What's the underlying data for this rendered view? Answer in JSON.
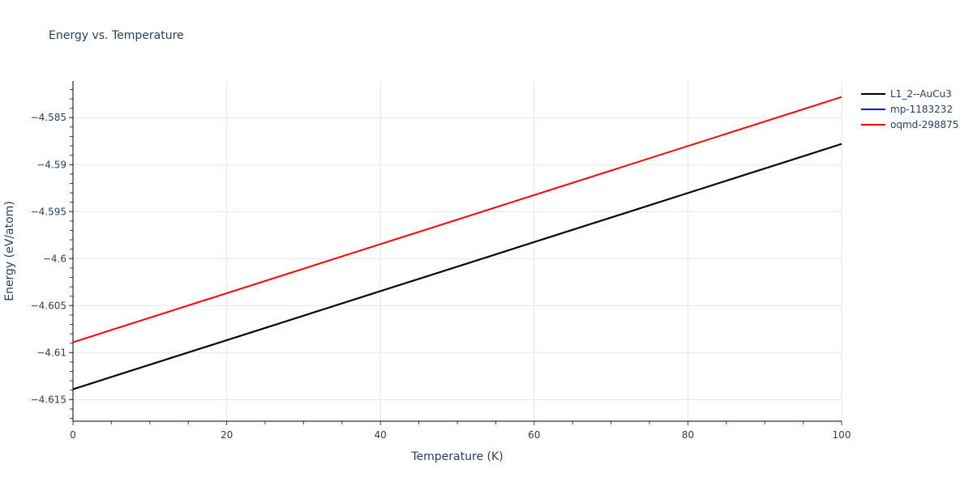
{
  "chart_data": {
    "type": "line",
    "title": "Energy vs. Temperature",
    "xlabel": "Temperature (K)",
    "ylabel": "Energy (eV/atom)",
    "xlim": [
      0,
      100
    ],
    "ylim": [
      -4.6173,
      -4.5811
    ],
    "xticks": [
      0,
      20,
      40,
      60,
      80,
      100
    ],
    "xtick_labels": [
      "0",
      "20",
      "40",
      "60",
      "80",
      "100"
    ],
    "yticks": [
      -4.615,
      -4.61,
      -4.605,
      -4.6,
      -4.595,
      -4.59,
      -4.585
    ],
    "ytick_labels": [
      "−4.615",
      "−4.61",
      "−4.605",
      "−4.6",
      "−4.595",
      "−4.59",
      "−4.585"
    ],
    "grid": true,
    "legend_position": "right",
    "series": [
      {
        "name": "L1_2--AuCu3",
        "color": "#000000",
        "x": [
          0,
          100
        ],
        "y": [
          -4.6139,
          -4.5878
        ]
      },
      {
        "name": "mp-1183232",
        "color": "#0000ff",
        "x": [
          0,
          100
        ],
        "y": [
          -4.6139,
          -4.5878
        ]
      },
      {
        "name": "oqmd-298875",
        "color": "#ff0000",
        "x": [
          0,
          100
        ],
        "y": [
          -4.6089,
          -4.5828
        ]
      }
    ]
  },
  "legend": {
    "items": [
      {
        "label": "L1_2--AuCu3",
        "color": "#000000"
      },
      {
        "label": "mp-1183232",
        "color": "#0000ff"
      },
      {
        "label": "oqmd-298875",
        "color": "#ff0000"
      }
    ]
  }
}
